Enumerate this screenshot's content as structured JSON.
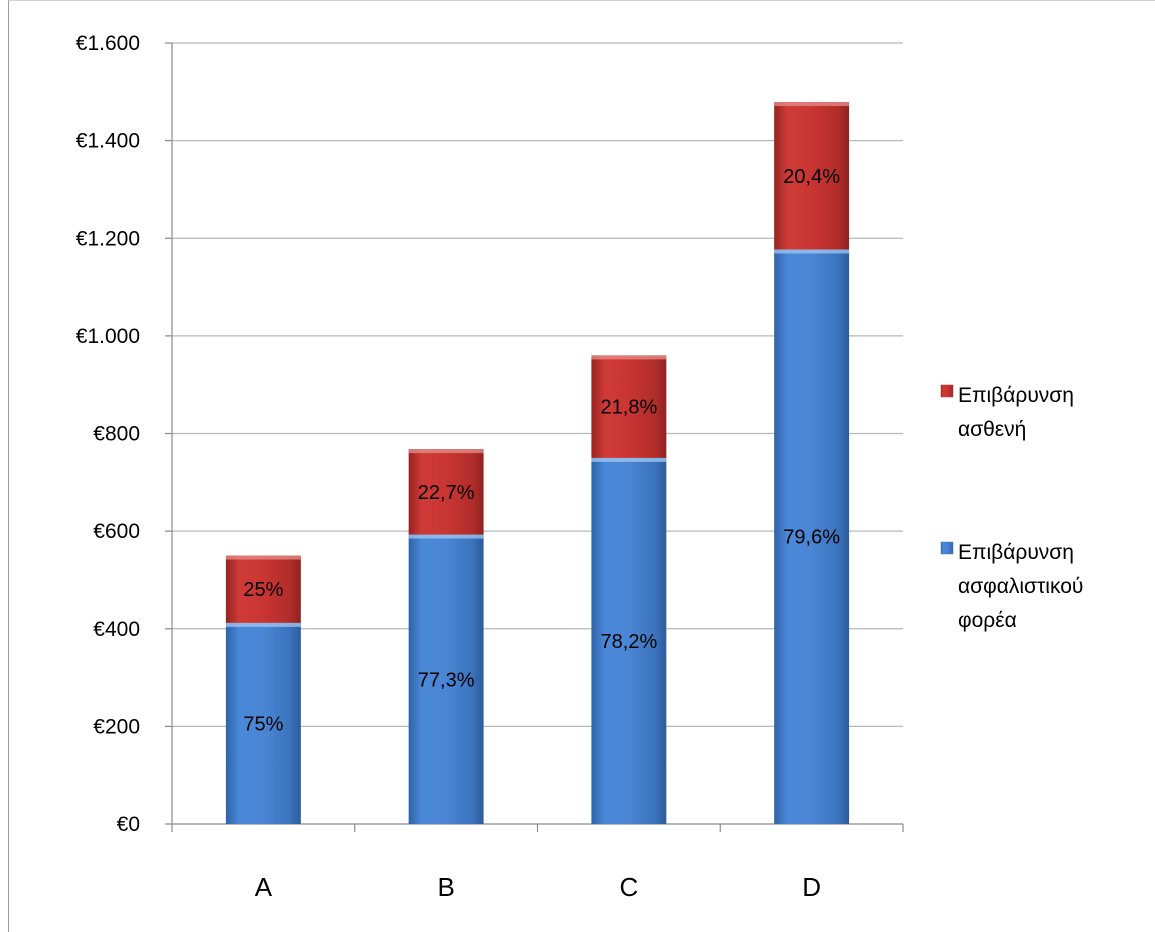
{
  "chart_data": {
    "type": "bar",
    "stacked": true,
    "categories": [
      "A",
      "B",
      "C",
      "D"
    ],
    "series": [
      {
        "name": "Επιβάρυνση ασφαλιστικού φορέα",
        "color": "#3f7fd1",
        "values": [
          412,
          593,
          750,
          1177
        ],
        "labels": [
          "75%",
          "77,3%",
          "78,2%",
          "79,6%"
        ]
      },
      {
        "name": "Επιβάρυνση ασθενή",
        "color": "#c0312f",
        "values": [
          138,
          175,
          210,
          302
        ],
        "labels": [
          "25%",
          "22,7%",
          "21,8%",
          "20,4%"
        ]
      }
    ],
    "ylim": [
      0,
      1600
    ],
    "yticks": [
      0,
      200,
      400,
      600,
      800,
      1000,
      1200,
      1400,
      1600
    ],
    "ytick_labels": [
      "€0",
      "€200",
      "€400",
      "€600",
      "€800",
      "€1.000",
      "€1.200",
      "€1.400",
      "€1.600"
    ],
    "grid": true,
    "legend_position": "right",
    "legend": [
      {
        "lines": [
          "Επιβάρυνση",
          "ασθενή"
        ],
        "color": "#c0312f"
      },
      {
        "lines": [
          "Επιβάρυνση",
          "ασφαλιστικού",
          "φορέα"
        ],
        "color": "#3f7fd1"
      }
    ]
  }
}
